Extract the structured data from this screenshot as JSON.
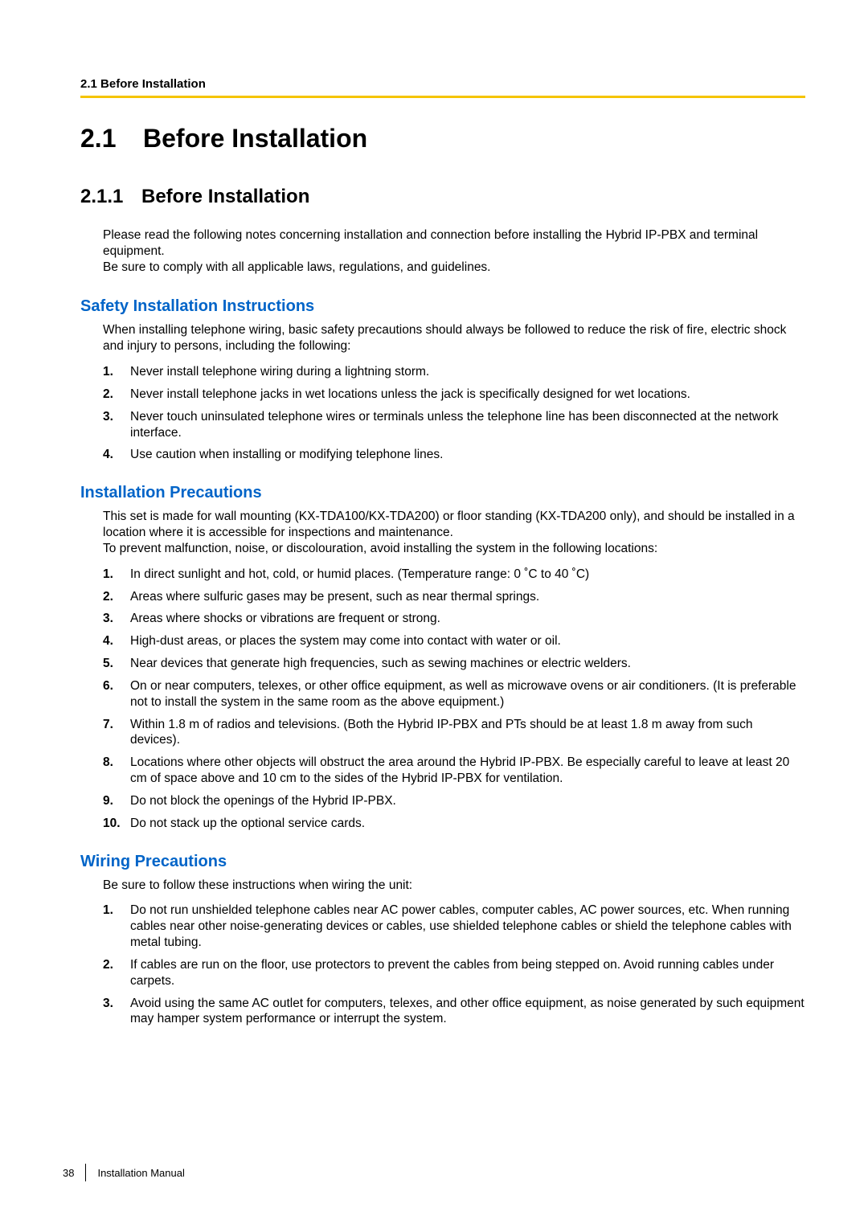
{
  "header": {
    "label": "2.1 Before Installation",
    "rule_color": "#f5c400"
  },
  "h1": {
    "num": "2.1",
    "text": "Before Installation"
  },
  "h2": {
    "num": "2.1.1",
    "text": "Before Installation"
  },
  "intro": {
    "p1": "Please read the following notes concerning installation and connection before installing the Hybrid IP-PBX and terminal equipment.",
    "p2": "Be sure to comply with all applicable laws, regulations, and guidelines."
  },
  "safety": {
    "heading": "Safety Installation Instructions",
    "intro": "When installing telephone wiring, basic safety precautions should always be followed to reduce the risk of fire, electric shock and injury to persons, including the following:",
    "items": [
      "Never install telephone wiring during a lightning storm.",
      "Never install telephone jacks in wet locations unless the jack is specifically designed for wet locations.",
      "Never touch uninsulated telephone wires or terminals unless the telephone line has been disconnected at the network interface.",
      "Use caution when installing or modifying telephone lines."
    ]
  },
  "precautions": {
    "heading": "Installation Precautions",
    "intro1": "This set is made for wall mounting (KX-TDA100/KX-TDA200) or floor standing (KX-TDA200 only), and should be installed in a location where it is accessible for inspections and maintenance.",
    "intro2": "To prevent malfunction, noise, or discolouration, avoid installing the system in the following locations:",
    "items": [
      "In direct sunlight and hot, cold, or humid places. (Temperature range: 0 ˚C to 40 ˚C)",
      "Areas where sulfuric gases may be present, such as near thermal springs.",
      "Areas where shocks or vibrations are frequent or strong.",
      "High-dust areas, or places the system may come into contact with water or oil.",
      "Near devices that generate high frequencies, such as sewing machines or electric welders.",
      "On or near computers, telexes, or other office equipment, as well as microwave ovens or air conditioners. (It is preferable not to install the system in the same room as the above equipment.)",
      "Within 1.8 m of radios and televisions. (Both the Hybrid IP-PBX and PTs should be at least 1.8 m away from such devices).",
      "Locations where other objects will obstruct the area around the Hybrid IP-PBX. Be especially careful to leave at least 20 cm of space above and 10 cm to the sides of the Hybrid IP-PBX for ventilation.",
      "Do not block the openings of the Hybrid IP-PBX.",
      "Do not stack up the optional service cards."
    ]
  },
  "wiring": {
    "heading": "Wiring Precautions",
    "intro": "Be sure to follow these instructions when wiring the unit:",
    "items": [
      "Do not run unshielded telephone cables near AC power cables, computer cables, AC power sources, etc. When running cables near other noise-generating devices or cables, use shielded telephone cables or shield the telephone cables with metal tubing.",
      "If cables are run on the floor, use protectors to prevent the cables from being stepped on. Avoid running cables under carpets.",
      "Avoid using the same AC outlet for computers, telexes, and other office equipment, as noise generated by such equipment may hamper system performance or interrupt the system."
    ]
  },
  "footer": {
    "page": "38",
    "doc": "Installation Manual"
  },
  "colors": {
    "heading_blue": "#0064c8",
    "text": "#000000",
    "background": "#ffffff"
  }
}
